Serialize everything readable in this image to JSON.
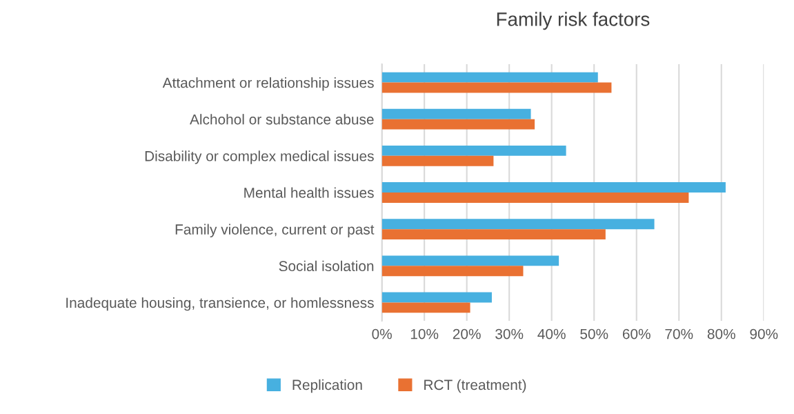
{
  "chart_data": {
    "type": "bar",
    "orientation": "horizontal",
    "title": "Family risk factors",
    "categories": [
      "Attachment or relationship issues",
      "Alchohol or substance abuse",
      "Disability or complex medical issues",
      "Mental health issues",
      "Family violence, current or past",
      "Social isolation",
      "Inadequate housing, transience, or homlessness"
    ],
    "series": [
      {
        "name": "Replication",
        "color": "#47b0e0",
        "values": [
          50.9,
          35.1,
          43.4,
          81.0,
          64.2,
          41.7,
          25.9
        ]
      },
      {
        "name": "RCT (treatment)",
        "color": "#e97132",
        "values": [
          54.1,
          36.0,
          26.3,
          72.3,
          52.7,
          33.3,
          20.8
        ]
      }
    ],
    "xlim": [
      0,
      90
    ],
    "xticks": [
      {
        "value": 0,
        "label": "0%"
      },
      {
        "value": 10,
        "label": "10%"
      },
      {
        "value": 20,
        "label": "20%"
      },
      {
        "value": 30,
        "label": "30%"
      },
      {
        "value": 40,
        "label": "40%"
      },
      {
        "value": 50,
        "label": "50%"
      },
      {
        "value": 60,
        "label": "60%"
      },
      {
        "value": 70,
        "label": "70%"
      },
      {
        "value": 80,
        "label": "80%"
      },
      {
        "value": 90,
        "label": "90%"
      }
    ],
    "grid": "x",
    "legend": "bottom"
  }
}
